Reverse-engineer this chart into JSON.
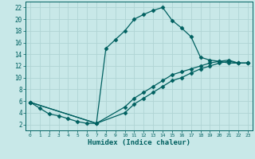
{
  "xlabel": "Humidex (Indice chaleur)",
  "ylabel": "",
  "bg_color": "#c8e8e8",
  "grid_color": "#b0d4d4",
  "line_color": "#006060",
  "marker": "D",
  "markersize": 2.5,
  "linewidth": 0.9,
  "xlim": [
    -0.5,
    23.5
  ],
  "ylim": [
    1,
    23
  ],
  "xticks": [
    0,
    1,
    2,
    3,
    4,
    5,
    6,
    7,
    8,
    9,
    10,
    11,
    12,
    13,
    14,
    15,
    16,
    17,
    18,
    19,
    20,
    21,
    22,
    23
  ],
  "yticks": [
    2,
    4,
    6,
    8,
    10,
    12,
    14,
    16,
    18,
    20,
    22
  ],
  "series": [
    {
      "x": [
        0,
        1,
        2,
        3,
        4,
        5,
        6,
        7,
        8,
        9,
        10,
        11,
        12,
        13,
        14,
        15,
        16,
        17,
        18,
        19,
        20,
        21,
        22,
        23
      ],
      "y": [
        5.8,
        4.8,
        3.8,
        3.5,
        3.0,
        2.5,
        2.2,
        2.2,
        15.0,
        16.5,
        18.0,
        20.0,
        20.8,
        21.5,
        22.0,
        19.8,
        18.5,
        17.0,
        13.5,
        13.0,
        12.8,
        12.5,
        12.5,
        12.5
      ]
    },
    {
      "x": [
        0,
        7,
        10,
        11,
        12,
        13,
        14,
        15,
        16,
        17,
        18,
        19,
        20,
        21,
        22,
        23
      ],
      "y": [
        5.8,
        2.2,
        5.0,
        6.5,
        7.5,
        8.5,
        9.5,
        10.5,
        11.0,
        11.5,
        12.0,
        12.5,
        12.8,
        13.0,
        12.5,
        12.5
      ]
    },
    {
      "x": [
        0,
        7,
        10,
        11,
        12,
        13,
        14,
        15,
        16,
        17,
        18,
        19,
        20,
        21,
        22,
        23
      ],
      "y": [
        5.8,
        2.2,
        4.0,
        5.5,
        6.5,
        7.5,
        8.5,
        9.5,
        10.0,
        10.8,
        11.5,
        12.0,
        12.5,
        12.8,
        12.5,
        12.5
      ]
    }
  ]
}
